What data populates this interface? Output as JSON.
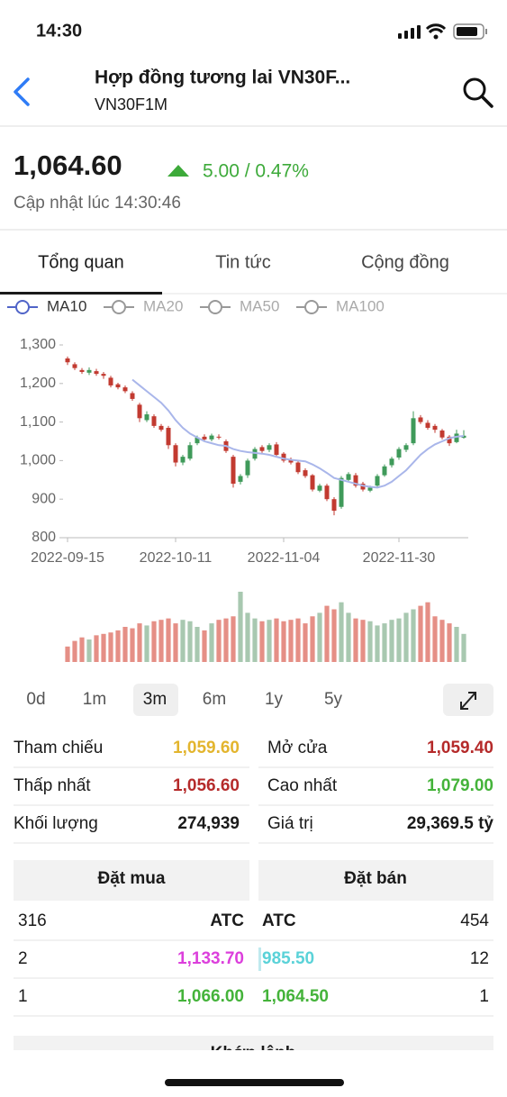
{
  "status_time": "14:30",
  "header": {
    "title": "Hợp đồng tương lai VN30F...",
    "subtitle": "VN30F1M"
  },
  "quote": {
    "price": "1,064.60",
    "change": "5.00 / 0.47%",
    "updated": "Cập nhật lúc 14:30:46"
  },
  "tabs": [
    "Tổng quan",
    "Tin tức",
    "Cộng đồng"
  ],
  "chart_data": {
    "type": "candlestick",
    "indicators": [
      "MA10",
      "MA20",
      "MA50",
      "MA100"
    ],
    "categories": [
      "2022-09-15",
      null,
      null,
      null,
      null,
      null,
      null,
      null,
      null,
      null,
      null,
      null,
      null,
      null,
      null,
      "2022-10-11",
      null,
      null,
      null,
      null,
      null,
      null,
      null,
      null,
      null,
      null,
      null,
      null,
      null,
      null,
      "2022-11-04",
      null,
      null,
      null,
      null,
      null,
      null,
      null,
      null,
      null,
      null,
      null,
      null,
      null,
      null,
      null,
      "2022-11-30",
      null,
      null,
      null,
      null,
      null,
      null,
      null,
      null,
      null
    ],
    "open": [
      1265,
      1250,
      1235,
      1228,
      1232,
      1225,
      1215,
      1198,
      1190,
      1175,
      1145,
      1105,
      1115,
      1090,
      1085,
      1040,
      995,
      1005,
      1045,
      1062,
      1055,
      1062,
      1050,
      1010,
      945,
      962,
      1005,
      1035,
      1028,
      1042,
      1018,
      1002,
      995,
      975,
      962,
      922,
      935,
      900,
      880,
      950,
      962,
      940,
      922,
      935,
      962,
      988,
      1008,
      1028,
      1045,
      1112,
      1098,
      1090,
      1078,
      1062,
      1048,
      1059.4
    ],
    "high": [
      1270,
      1255,
      1240,
      1242,
      1238,
      1230,
      1220,
      1202,
      1195,
      1180,
      1150,
      1128,
      1120,
      1095,
      1090,
      1045,
      1015,
      1048,
      1065,
      1068,
      1070,
      1068,
      1055,
      1015,
      965,
      1005,
      1035,
      1040,
      1045,
      1048,
      1022,
      1008,
      1000,
      980,
      965,
      940,
      940,
      905,
      960,
      970,
      968,
      945,
      935,
      965,
      990,
      1010,
      1035,
      1045,
      1128,
      1118,
      1105,
      1095,
      1082,
      1066,
      1080,
      1079
    ],
    "low": [
      1248,
      1235,
      1225,
      1222,
      1220,
      1212,
      1190,
      1185,
      1175,
      1155,
      1100,
      1100,
      1085,
      1075,
      1030,
      985,
      988,
      1000,
      1040,
      1050,
      1050,
      1055,
      1020,
      930,
      938,
      955,
      1000,
      1020,
      1022,
      1010,
      995,
      990,
      965,
      955,
      920,
      918,
      895,
      858,
      875,
      945,
      930,
      920,
      918,
      930,
      958,
      982,
      1002,
      1022,
      1040,
      1095,
      1080,
      1072,
      1055,
      1038,
      1045,
      1056.6
    ],
    "close": [
      1255,
      1240,
      1230,
      1235,
      1225,
      1220,
      1195,
      1190,
      1180,
      1160,
      1110,
      1120,
      1090,
      1080,
      1040,
      995,
      1010,
      1040,
      1060,
      1055,
      1065,
      1060,
      1025,
      940,
      960,
      1000,
      1030,
      1025,
      1040,
      1015,
      1000,
      995,
      970,
      960,
      925,
      935,
      900,
      870,
      955,
      965,
      935,
      925,
      930,
      960,
      985,
      1005,
      1030,
      1040,
      1110,
      1100,
      1085,
      1080,
      1060,
      1045,
      1070,
      1064.6
    ],
    "ma10": [
      null,
      null,
      null,
      null,
      null,
      null,
      null,
      null,
      null,
      1210,
      1195,
      1180,
      1165,
      1150,
      1130,
      1105,
      1085,
      1070,
      1060,
      1050,
      1045,
      1040,
      1038,
      1030,
      1025,
      1022,
      1020,
      1018,
      1015,
      1010,
      1005,
      1002,
      1000,
      998,
      990,
      980,
      968,
      955,
      950,
      945,
      940,
      935,
      932,
      930,
      935,
      945,
      960,
      975,
      995,
      1015,
      1030,
      1042,
      1050,
      1058,
      1062,
      1064
    ],
    "volume": [
      22,
      30,
      35,
      32,
      38,
      40,
      42,
      45,
      50,
      48,
      55,
      52,
      58,
      60,
      62,
      55,
      60,
      58,
      50,
      45,
      55,
      60,
      62,
      65,
      100,
      70,
      62,
      58,
      60,
      62,
      58,
      60,
      62,
      55,
      65,
      70,
      80,
      75,
      85,
      70,
      62,
      60,
      58,
      52,
      55,
      60,
      62,
      70,
      75,
      80,
      85,
      65,
      60,
      55,
      50,
      40
    ],
    "vlim": [
      0,
      100
    ],
    "ylim": [
      800,
      1300
    ],
    "yticks": [
      {
        "value": 1300,
        "label": "1,300"
      },
      {
        "value": 1200,
        "label": "1,200"
      },
      {
        "value": 1100,
        "label": "1,100"
      },
      {
        "value": 1000,
        "label": "1,000"
      },
      900,
      800
    ],
    "up_color": "#3f9a5a",
    "down_color": "#c23a30",
    "up_volume_color": "#a8c8b0",
    "down_volume_color": "#e58f86",
    "ma_color": "#a9b6ea",
    "active_color": "#5064c8",
    "inactive_color": "#999999"
  },
  "periods": [
    "0d",
    "1m",
    "3m",
    "6m",
    "1y",
    "5y"
  ],
  "stats": [
    {
      "label": "Tham chiếu",
      "value": "1,059.60"
    },
    {
      "label": "Mở cửa",
      "value": "1,059.40"
    },
    {
      "label": "Thấp nhất",
      "value": "1,056.60"
    },
    {
      "label": "Cao nhất",
      "value": "1,079.00"
    },
    {
      "label": "Khối lượng",
      "value": "274,939"
    },
    {
      "label": "Giá trị",
      "value": "29,369.5 tỷ"
    }
  ],
  "order_book": {
    "headers": [
      "Đặt mua",
      "Đặt bán"
    ],
    "rows": [
      [
        "316",
        "ATC",
        "ATC",
        "454"
      ],
      [
        "2",
        "1,133.70",
        "985.50",
        "12"
      ],
      [
        "1",
        "1,066.00",
        "1,064.50",
        "1"
      ]
    ]
  },
  "next_section": "Khớp lệnh"
}
